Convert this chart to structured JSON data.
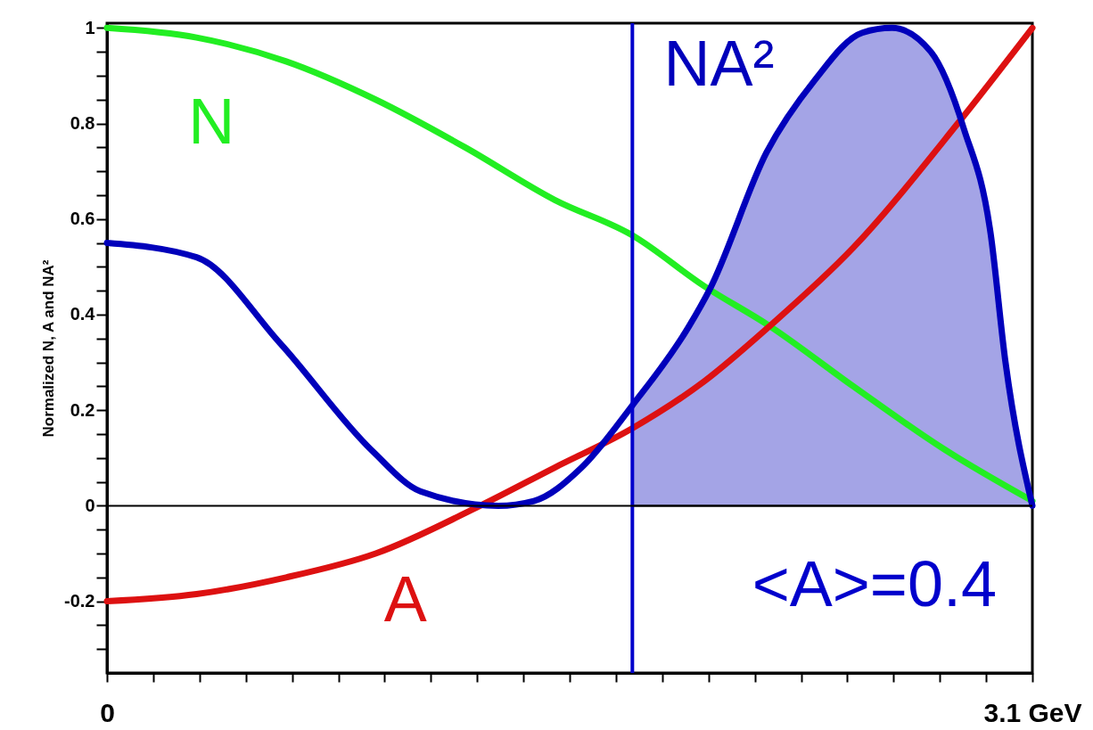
{
  "chart_data": {
    "type": "line",
    "ylabel": "Normalized N, A and NA²",
    "xlim": [
      0,
      3.1
    ],
    "ylim": [
      -0.35,
      1.01
    ],
    "xticks": [
      {
        "value": 0,
        "label": "0"
      },
      {
        "value": 0.155,
        "label": null
      },
      {
        "value": 0.31,
        "label": null
      },
      {
        "value": 0.465,
        "label": null
      },
      {
        "value": 0.62,
        "label": null
      },
      {
        "value": 0.775,
        "label": null
      },
      {
        "value": 0.93,
        "label": null
      },
      {
        "value": 1.085,
        "label": null
      },
      {
        "value": 1.24,
        "label": null
      },
      {
        "value": 1.395,
        "label": null
      },
      {
        "value": 1.55,
        "label": null
      },
      {
        "value": 1.705,
        "label": null
      },
      {
        "value": 1.86,
        "label": null
      },
      {
        "value": 2.015,
        "label": null
      },
      {
        "value": 2.17,
        "label": null
      },
      {
        "value": 2.325,
        "label": null
      },
      {
        "value": 2.48,
        "label": null
      },
      {
        "value": 2.635,
        "label": null
      },
      {
        "value": 2.79,
        "label": null
      },
      {
        "value": 2.945,
        "label": null
      },
      {
        "value": 3.1,
        "label": "3.1 GeV"
      }
    ],
    "yticks": [
      {
        "value": -0.3,
        "label": null
      },
      {
        "value": -0.25,
        "label": null
      },
      -0.2,
      {
        "value": -0.15,
        "label": null
      },
      {
        "value": -0.1,
        "label": null
      },
      {
        "value": -0.05,
        "label": null
      },
      0,
      {
        "value": 0.05,
        "label": null
      },
      {
        "value": 0.1,
        "label": null
      },
      {
        "value": 0.15,
        "label": null
      },
      0.2,
      {
        "value": 0.25,
        "label": null
      },
      {
        "value": 0.3,
        "label": null
      },
      {
        "value": 0.35,
        "label": null
      },
      0.4,
      {
        "value": 0.45,
        "label": null
      },
      {
        "value": 0.5,
        "label": null
      },
      {
        "value": 0.55,
        "label": null
      },
      0.6,
      {
        "value": 0.65,
        "label": null
      },
      {
        "value": 0.7,
        "label": null
      },
      {
        "value": 0.75,
        "label": null
      },
      0.8,
      {
        "value": 0.85,
        "label": null
      },
      {
        "value": 0.9,
        "label": null
      },
      {
        "value": 0.95,
        "label": null
      },
      1
    ],
    "series": [
      {
        "type": "area",
        "color": "#a4a4e6",
        "x": [
          1.76,
          1.95,
          2.02,
          2.21,
          2.37,
          2.53,
          2.63,
          2.76,
          2.87,
          2.96,
          3.01,
          3.1
        ],
        "values": [
          0.21,
          0.376,
          0.454,
          0.74,
          0.89,
          0.99,
          1.0,
          0.95,
          0.79,
          0.57,
          0.3,
          0
        ]
      },
      {
        "name": "N",
        "color": "#22ee22",
        "x": [
          0,
          0.3,
          0.6,
          0.9,
          1.2,
          1.5,
          1.76,
          2.0,
          2.22,
          2.5,
          2.8,
          3.1
        ],
        "values": [
          1,
          0.98,
          0.93,
          0.85,
          0.75,
          0.64,
          0.566,
          0.46,
          0.376,
          0.25,
          0.12,
          0.01
        ]
      },
      {
        "name": "A",
        "color": "#dd1111",
        "x": [
          0,
          0.3,
          0.6,
          0.9,
          1.25,
          1.5,
          1.76,
          2.0,
          2.22,
          2.5,
          2.85,
          3.1
        ],
        "values": [
          -0.2,
          -0.185,
          -0.15,
          -0.1,
          0,
          0.08,
          0.162,
          0.26,
          0.376,
          0.54,
          0.8,
          1.0
        ]
      },
      {
        "name": "NA²",
        "color": "#0000bb",
        "x": [
          0,
          0.3,
          0.58,
          0.89,
          1.05,
          1.31,
          1.43,
          1.59,
          1.76,
          1.95,
          2.02,
          2.21,
          2.37,
          2.53,
          2.63,
          2.76,
          2.87,
          2.96,
          3.01,
          3.1
        ],
        "values": [
          0.55,
          0.52,
          0.34,
          0.114,
          0.03,
          0,
          0.01,
          0.08,
          0.21,
          0.376,
          0.454,
          0.74,
          0.89,
          0.99,
          1.0,
          0.95,
          0.79,
          0.57,
          0.3,
          0
        ]
      }
    ],
    "ref_lines": [
      {
        "axis": "x",
        "value": 1.76,
        "color": "#0000cc"
      },
      {
        "axis": "y",
        "value": 0,
        "color": "#000000"
      }
    ],
    "annotations": [
      "<A>=0.4"
    ]
  }
}
